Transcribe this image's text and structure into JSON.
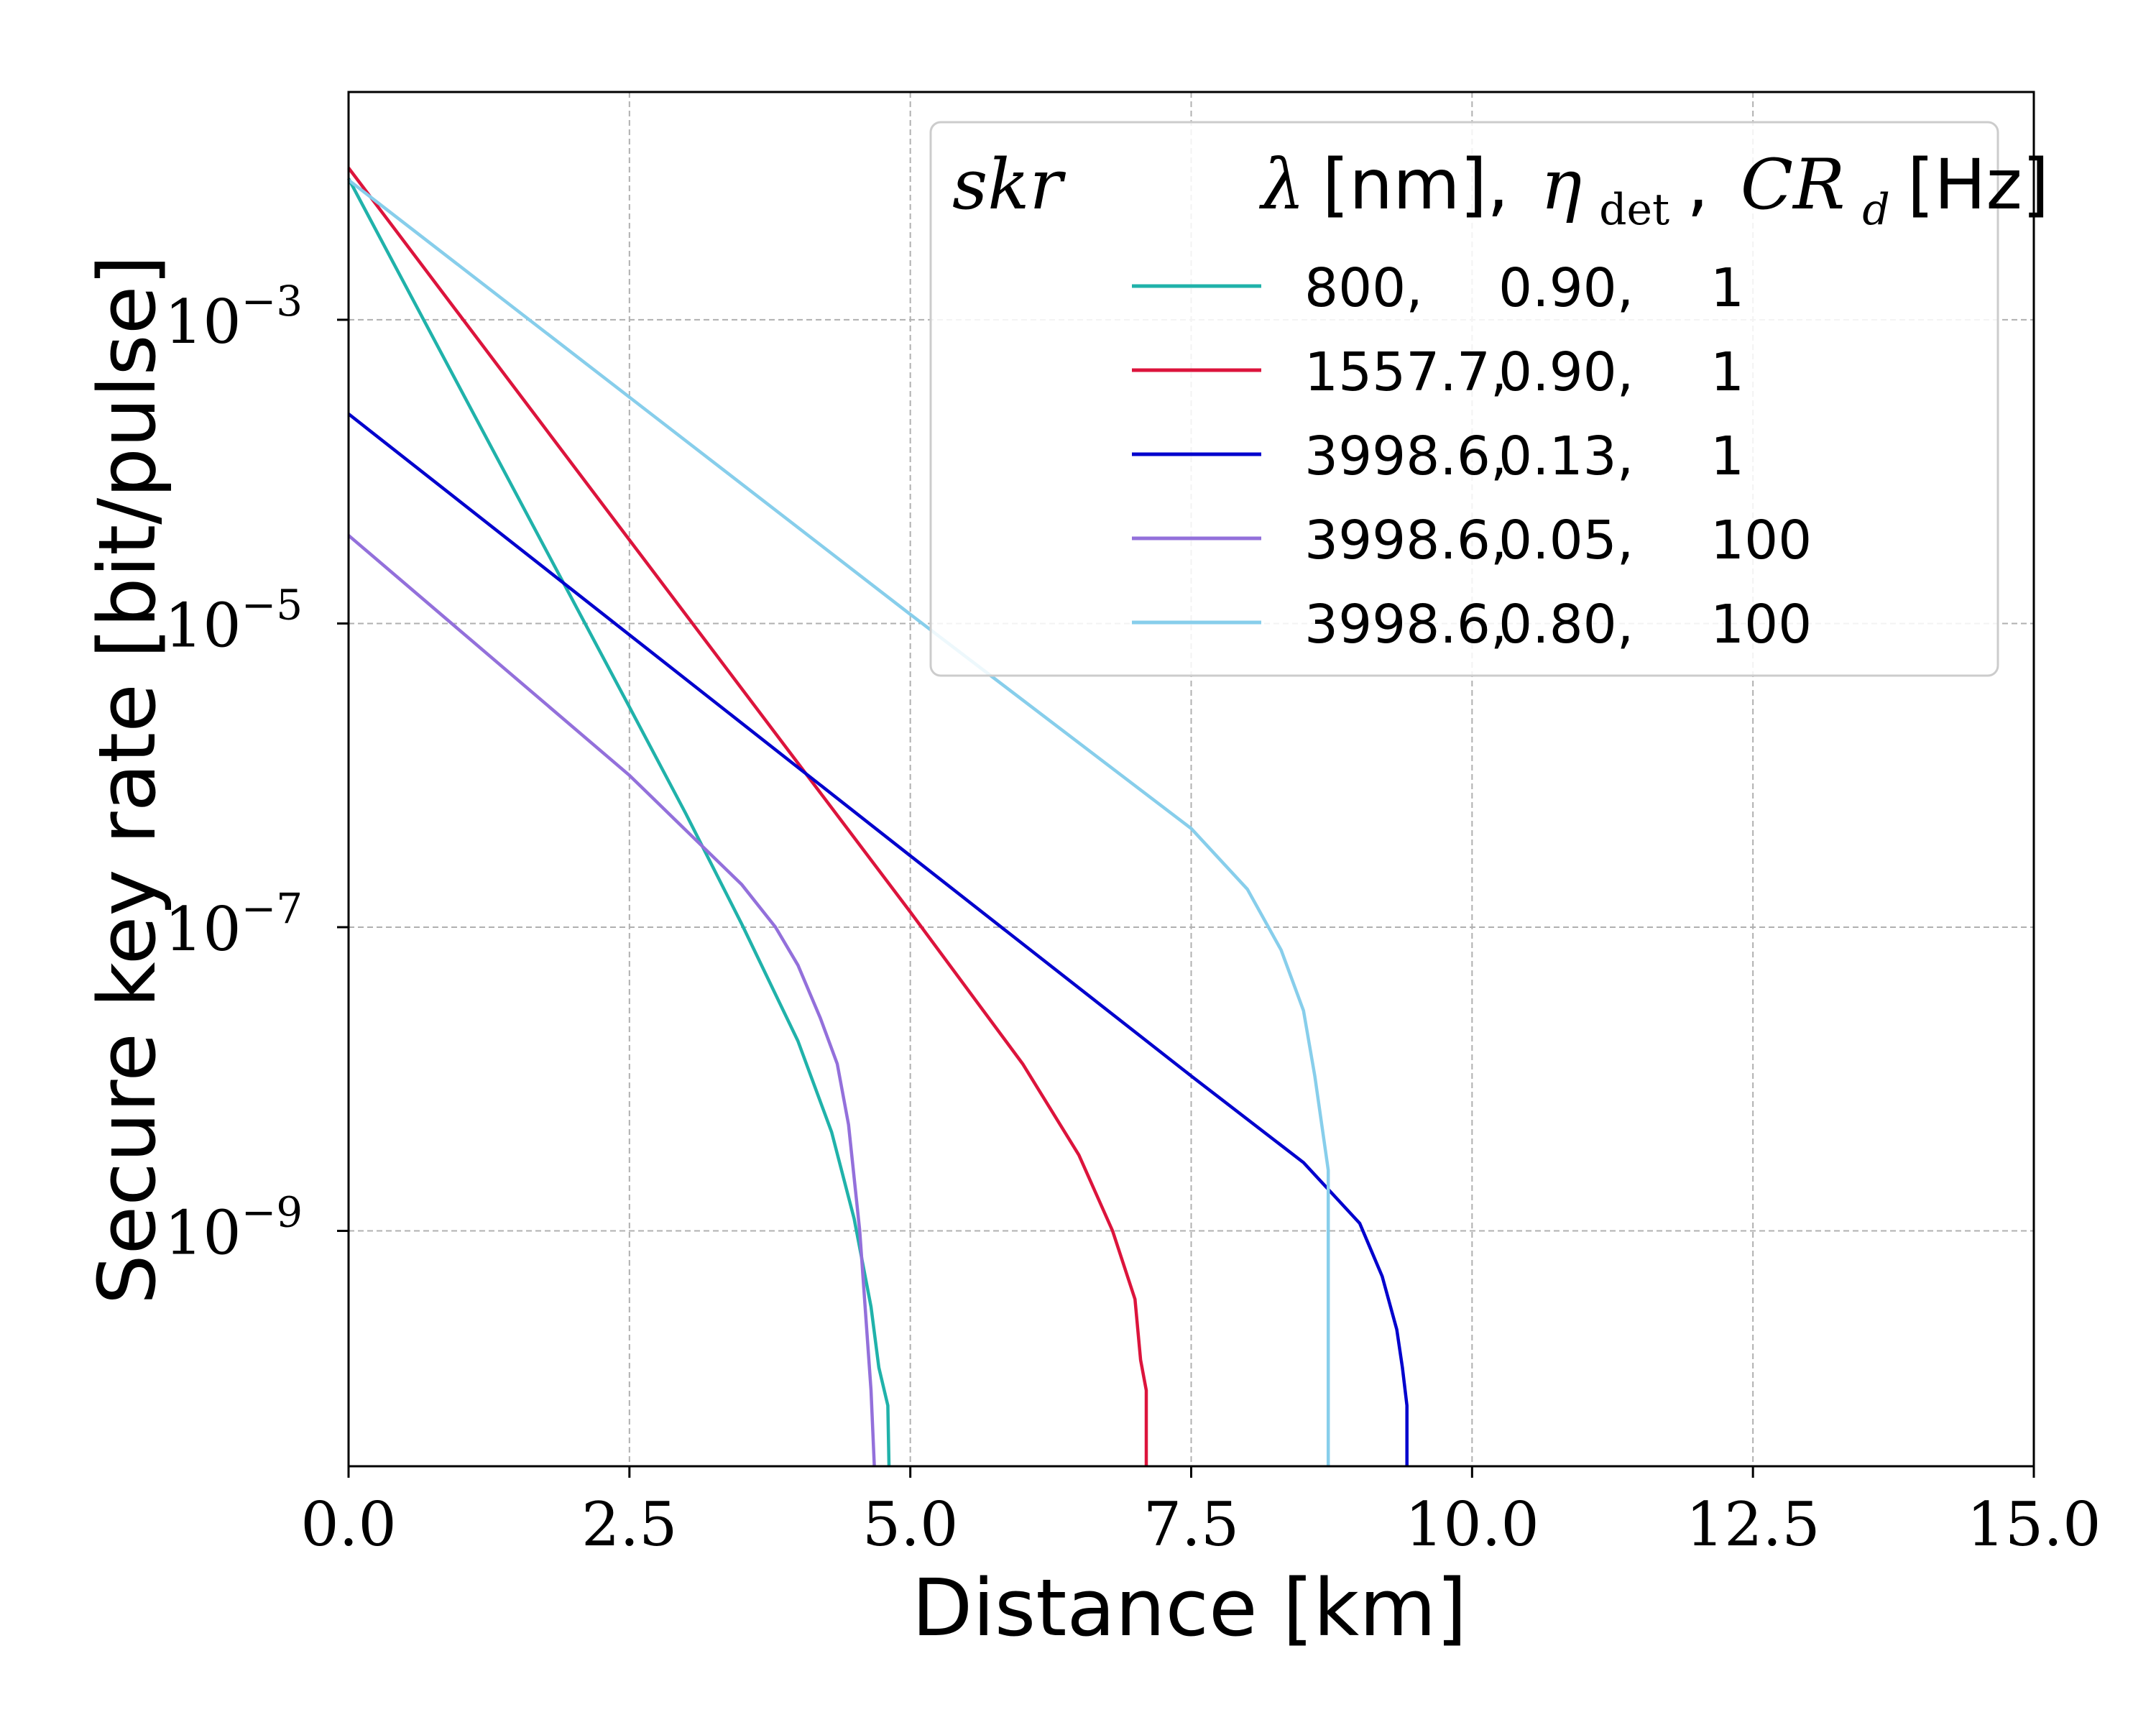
{
  "chart_data": {
    "type": "line",
    "xlabel": "Distance [km]",
    "ylabel": "Secure key rate [bit/pulse]",
    "xlim": [
      0.0,
      15.0
    ],
    "ylim_log10": [
      -10.55,
      -1.5
    ],
    "xticks": [
      0.0,
      2.5,
      5.0,
      7.5,
      10.0,
      12.5,
      15.0
    ],
    "xtick_labels": [
      "0.0",
      "2.5",
      "5.0",
      "7.5",
      "10.0",
      "12.5",
      "15.0"
    ],
    "yticks_log10": [
      -3,
      -5,
      -7,
      -9
    ],
    "ytick_labels": [
      {
        "base": "10",
        "exp": "−3"
      },
      {
        "base": "10",
        "exp": "−5"
      },
      {
        "base": "10",
        "exp": "−7"
      },
      {
        "base": "10",
        "exp": "−9"
      }
    ],
    "grid": true,
    "y_scale": "log",
    "legend": {
      "placement": "top-right",
      "title_left": "skr",
      "title_right": {
        "lambda": "λ",
        "nm": "[nm],",
        "eta": "η",
        "eta_sub": "det",
        "comma": ",",
        "cr": "CR",
        "cr_sub": "d",
        "hz": "[Hz]"
      },
      "columns": [
        "λ",
        "η_det",
        "CR_d"
      ]
    },
    "series": [
      {
        "name": "800, 0.90, 1",
        "lambda": "800,",
        "eta": "0.90,",
        "cr": "1",
        "color": "#20b2aa",
        "points": [
          [
            0,
            -2.07
          ],
          [
            2.5,
            -5.55
          ],
          [
            3.0,
            -6.25
          ],
          [
            3.5,
            -6.98
          ],
          [
            4.0,
            -7.75
          ],
          [
            4.3,
            -8.35
          ],
          [
            4.5,
            -8.92
          ],
          [
            4.65,
            -9.5
          ],
          [
            4.72,
            -9.9
          ],
          [
            4.8,
            -10.15
          ],
          [
            4.81,
            -10.55
          ]
        ]
      },
      {
        "name": "1557.7, 0.90, 1",
        "lambda": "1557.7,",
        "eta": "0.90,",
        "cr": "1",
        "color": "#dc143c",
        "points": [
          [
            0,
            -2.0
          ],
          [
            5.0,
            -6.9
          ],
          [
            6.0,
            -7.9
          ],
          [
            6.5,
            -8.5
          ],
          [
            6.8,
            -9.0
          ],
          [
            7.0,
            -9.45
          ],
          [
            7.05,
            -9.85
          ],
          [
            7.1,
            -10.05
          ],
          [
            7.1,
            -10.55
          ]
        ]
      },
      {
        "name": "3998.6, 0.13, 1",
        "lambda": "3998.6,",
        "eta": "0.13,",
        "cr": "1",
        "color": "#0000cd",
        "points": [
          [
            0,
            -3.62
          ],
          [
            5.0,
            -6.53
          ],
          [
            7.5,
            -7.98
          ],
          [
            8.5,
            -8.55
          ],
          [
            9.0,
            -8.95
          ],
          [
            9.2,
            -9.3
          ],
          [
            9.33,
            -9.65
          ],
          [
            9.38,
            -9.9
          ],
          [
            9.42,
            -10.15
          ],
          [
            9.42,
            -10.55
          ]
        ]
      },
      {
        "name": "3998.6, 0.05, 100",
        "lambda": "3998.6,",
        "eta": "0.05,",
        "cr": "100",
        "color": "#9370db",
        "points": [
          [
            0,
            -4.42
          ],
          [
            2.5,
            -6.0
          ],
          [
            3.0,
            -6.36
          ],
          [
            3.5,
            -6.72
          ],
          [
            3.8,
            -7.0
          ],
          [
            4.0,
            -7.25
          ],
          [
            4.2,
            -7.6
          ],
          [
            4.35,
            -7.9
          ],
          [
            4.45,
            -8.3
          ],
          [
            4.55,
            -9.0
          ],
          [
            4.65,
            -10.05
          ],
          [
            4.68,
            -10.55
          ]
        ]
      },
      {
        "name": "3998.6, 0.80, 100",
        "lambda": "3998.6,",
        "eta": "0.80,",
        "cr": "100",
        "color": "#87ceeb",
        "points": [
          [
            0,
            -2.08
          ],
          [
            5.0,
            -4.94
          ],
          [
            7.5,
            -6.35
          ],
          [
            8.0,
            -6.75
          ],
          [
            8.3,
            -7.15
          ],
          [
            8.5,
            -7.55
          ],
          [
            8.6,
            -7.98
          ],
          [
            8.72,
            -8.6
          ],
          [
            8.72,
            -10.55
          ]
        ]
      }
    ]
  }
}
